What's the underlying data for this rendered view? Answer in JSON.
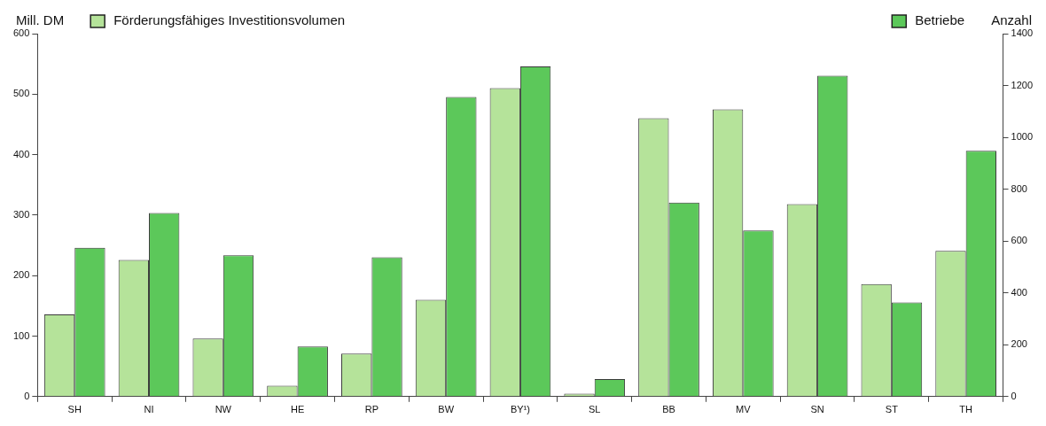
{
  "chart_data": {
    "type": "bar",
    "ylabel": "Mill. DM",
    "y2label": "Anzahl",
    "categories": [
      "SH",
      "NI",
      "NW",
      "HE",
      "RP",
      "BW",
      "BY¹)",
      "SL",
      "BB",
      "MV",
      "SN",
      "ST",
      "TH"
    ],
    "series": [
      {
        "name": "Förderungsfähiges Investitionsvolumen",
        "color": "#b5e39a",
        "values": [
          136,
          226,
          96,
          18,
          71,
          160,
          510,
          5,
          460,
          475,
          318,
          186,
          241
        ]
      },
      {
        "name": "Betriebe",
        "color": "#5cc85a",
        "axis": "y2",
        "values": [
          574,
          708,
          545,
          193,
          537,
          1156,
          1274,
          68,
          748,
          641,
          1238,
          363,
          948
        ]
      }
    ],
    "ylim": [
      0,
      600
    ],
    "yticks": [
      0,
      100,
      200,
      300,
      400,
      500,
      600
    ],
    "y2lim": [
      0,
      1400
    ],
    "y2ticks": [
      0,
      200,
      400,
      600,
      800,
      1000,
      1200,
      1400
    ],
    "grid": false,
    "legend": "top"
  }
}
